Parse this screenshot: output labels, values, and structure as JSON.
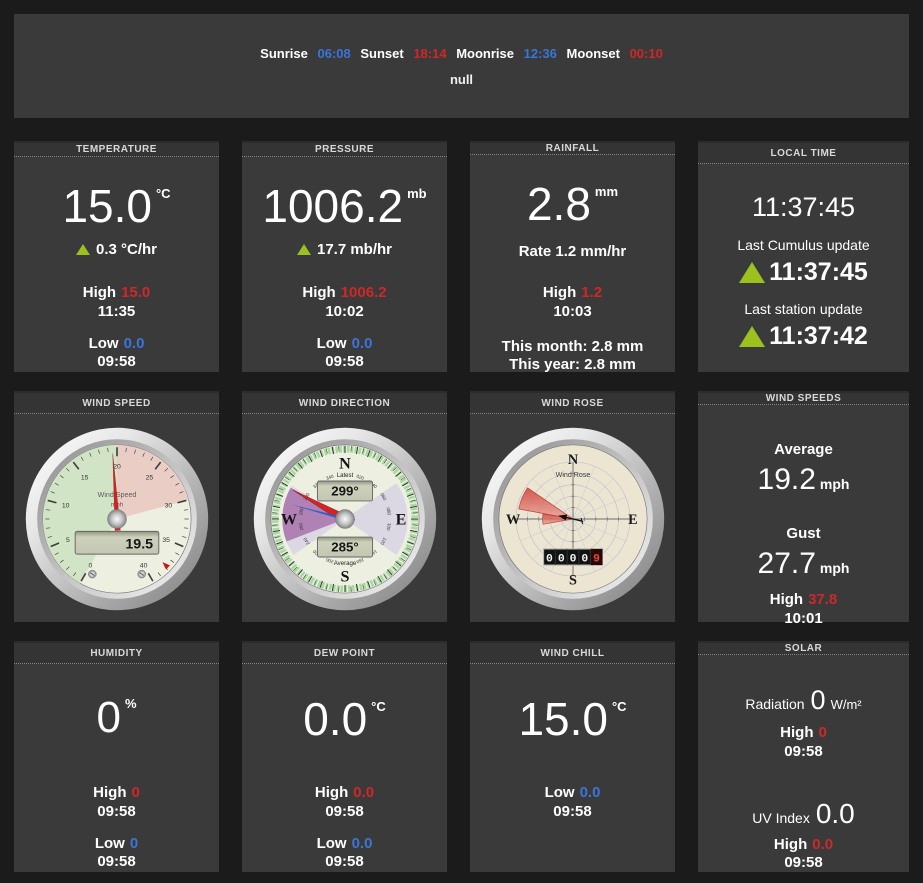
{
  "theme": {
    "page_bg": "#1b1b1b",
    "panel_bg": "#3a3a3a",
    "accent_red": "#ce2828",
    "accent_blue": "#3a75d8",
    "accent_green": "#9cc11f",
    "gauge_face": "#edefe0",
    "rose_face": "#ebe5d2",
    "lcd_face": "#c9cdb8"
  },
  "banner": {
    "sunrise_label": "Sunrise",
    "sunrise": "06:08",
    "sunset_label": "Sunset",
    "sunset": "18:14",
    "moonrise_label": "Moonrise",
    "moonrise": "12:36",
    "moonset_label": "Moonset",
    "moonset": "00:10",
    "subtitle": "null"
  },
  "temperature": {
    "title": "TEMPERATURE",
    "value": "15.0",
    "unit": "°C",
    "trend": "0.3 °C/hr",
    "high_label": "High",
    "high": "15.0",
    "high_time": "11:35",
    "low_label": "Low",
    "low": "0.0",
    "low_time": "09:58"
  },
  "pressure": {
    "title": "PRESSURE",
    "value": "1006.2",
    "unit": "mb",
    "trend": "17.7 mb/hr",
    "high_label": "High",
    "high": "1006.2",
    "high_time": "10:02",
    "low_label": "Low",
    "low": "0.0",
    "low_time": "09:58"
  },
  "rainfall": {
    "title": "RAINFALL",
    "value": "2.8",
    "unit": "mm",
    "rate": "Rate 1.2 mm/hr",
    "high_label": "High",
    "high": "1.2",
    "high_time": "10:03",
    "month": "This month: 2.8 mm",
    "year": "This year: 2.8 mm"
  },
  "local_time": {
    "title": "LOCAL TIME",
    "time": "11:37:45",
    "cumulus_label": "Last Cumulus update",
    "cumulus_time": "11:37:45",
    "station_label": "Last station update",
    "station_time": "11:37:42"
  },
  "wind_speed": {
    "title": "WIND SPEED",
    "gauge": {
      "label": "Wind Speed",
      "unit": "mph",
      "min": 0,
      "max": 40,
      "start_angle": -150,
      "sweep": 300,
      "value": 19.5,
      "lcd": "19.5",
      "peak": 37.8,
      "scale_labels": [
        "0",
        "5",
        "10",
        "15",
        "20",
        "25",
        "30",
        "35",
        "40"
      ],
      "sections": [
        {
          "from": 0,
          "to": 20,
          "color": "#d2e4c6"
        },
        {
          "from": 20,
          "to": 30,
          "color": "#eacec5"
        }
      ]
    }
  },
  "wind_direction": {
    "title": "WIND DIRECTION",
    "gauge": {
      "latest_label": "Latest",
      "average_label": "Average",
      "latest": 299,
      "average": 285,
      "latest_lcd": "299°",
      "average_lcd": "285°",
      "cardinals": [
        "N",
        "E",
        "S",
        "W"
      ],
      "degree_labels": [
        "020",
        "040",
        "060",
        "080",
        "100",
        "120",
        "140",
        "160",
        "200",
        "220",
        "240",
        "260",
        "280",
        "300",
        "320",
        "340"
      ],
      "sectors": [
        {
          "from": 55,
          "to": 125,
          "color": "#d8d5e4"
        },
        {
          "from": 235,
          "to": 302,
          "color": "#d8d5e4"
        },
        {
          "from": 249,
          "to": 300,
          "color": "#a874ae"
        }
      ]
    }
  },
  "wind_rose": {
    "title": "WIND ROSE",
    "gauge": {
      "label": "Wind Rose",
      "cardinals": [
        "N",
        "E",
        "S",
        "W"
      ],
      "petals": [
        {
          "bearing": 292.5,
          "length": 58,
          "width": 24
        },
        {
          "bearing": 270,
          "length": 32,
          "width": 20
        }
      ],
      "odometer": [
        "0",
        "0",
        "0",
        "0",
        "9"
      ]
    }
  },
  "wind_speeds": {
    "title": "WIND SPEEDS",
    "average_label": "Average",
    "average": "19.2",
    "average_unit": "mph",
    "gust_label": "Gust",
    "gust": "27.7",
    "gust_unit": "mph",
    "high_label": "High",
    "high": "37.8",
    "high_time": "10:01"
  },
  "humidity": {
    "title": "HUMIDITY",
    "value": "0",
    "unit": "%",
    "high_label": "High",
    "high": "0",
    "high_time": "09:58",
    "low_label": "Low",
    "low": "0",
    "low_time": "09:58"
  },
  "dew_point": {
    "title": "DEW POINT",
    "value": "0.0",
    "unit": "°C",
    "high_label": "High",
    "high": "0.0",
    "high_time": "09:58",
    "low_label": "Low",
    "low": "0.0",
    "low_time": "09:58"
  },
  "wind_chill": {
    "title": "WIND CHILL",
    "value": "15.0",
    "unit": "°C",
    "low_label": "Low",
    "low": "0.0",
    "low_time": "09:58"
  },
  "solar": {
    "title": "SOLAR",
    "radiation_label": "Radiation",
    "radiation": "0",
    "radiation_unit": "W/m²",
    "high_label": "High",
    "high": "0",
    "high_time": "09:58",
    "uv_label": "UV Index",
    "uv": "0.0",
    "uv_high_label": "High",
    "uv_high": "0.0",
    "uv_high_time": "09:58"
  }
}
